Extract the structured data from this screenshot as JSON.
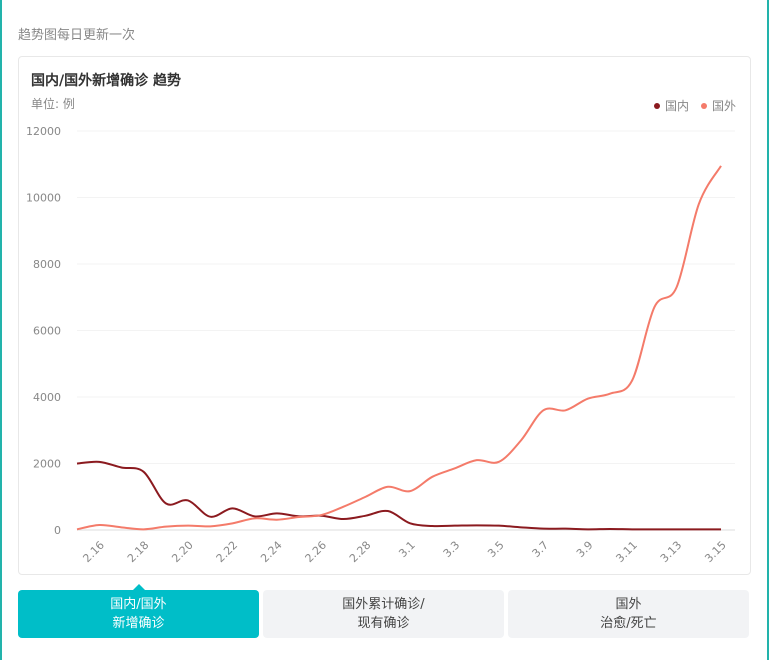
{
  "note": "趋势图每日更新一次",
  "chart_card": {
    "title": "国内/国外新增确诊 趋势",
    "unit": "单位: 例"
  },
  "tabs": [
    {
      "line1": "国内/国外",
      "line2": "新增确诊",
      "active": true
    },
    {
      "line1": "国外累计确诊/",
      "line2": "现有确诊",
      "active": false
    },
    {
      "line1": "国外",
      "line2": "治愈/死亡",
      "active": false
    }
  ],
  "colors": {
    "domestic": "#8b1a1f",
    "foreign": "#f47b6a",
    "accent": "#00bec8",
    "frame": "#22b3ab"
  },
  "chart_data": {
    "type": "line",
    "title": "国内/国外新增确诊 趋势",
    "ylabel": "单位: 例",
    "ylim": [
      0,
      12000
    ],
    "yticks": [
      0,
      2000,
      4000,
      6000,
      8000,
      10000,
      12000
    ],
    "x_tick_labels": [
      "2.16",
      "2.18",
      "2.20",
      "2.22",
      "2.24",
      "2.26",
      "2.28",
      "3.1",
      "3.3",
      "3.5",
      "3.7",
      "3.9",
      "3.11",
      "3.13",
      "3.15"
    ],
    "x": [
      "2.15",
      "2.16",
      "2.17",
      "2.18",
      "2.19",
      "2.20",
      "2.21",
      "2.22",
      "2.23",
      "2.24",
      "2.25",
      "2.26",
      "2.27",
      "2.28",
      "2.29",
      "3.1",
      "3.2",
      "3.3",
      "3.4",
      "3.5",
      "3.6",
      "3.7",
      "3.8",
      "3.9",
      "3.10",
      "3.11",
      "3.12",
      "3.13",
      "3.14",
      "3.15"
    ],
    "legend": [
      "国内",
      "国外"
    ],
    "legend_position": "top-right",
    "grid": true,
    "series": [
      {
        "name": "国内",
        "color": "#8b1a1f",
        "values": [
          2000,
          2050,
          1880,
          1750,
          800,
          890,
          400,
          650,
          410,
          500,
          410,
          430,
          330,
          430,
          570,
          200,
          120,
          130,
          140,
          130,
          80,
          40,
          40,
          20,
          30,
          20,
          20,
          20,
          20,
          20
        ]
      },
      {
        "name": "国外",
        "color": "#f47b6a",
        "values": [
          20,
          150,
          80,
          20,
          100,
          130,
          110,
          200,
          350,
          310,
          390,
          450,
          700,
          1000,
          1300,
          1170,
          1600,
          1850,
          2100,
          2050,
          2700,
          3600,
          3600,
          3950,
          4100,
          4500,
          6700,
          7300,
          9800,
          10950
        ]
      }
    ]
  }
}
